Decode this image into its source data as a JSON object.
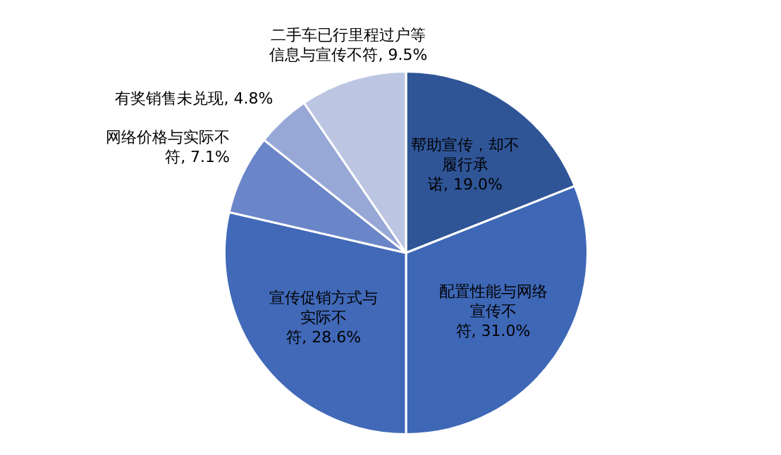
{
  "chart_data": {
    "type": "pie",
    "categories": [
      "帮助宣传，却不履行承诺",
      "配置性能与网络宣传不符",
      "宣传促销方式与实际不符",
      "网络价格与实际不符",
      "有奖销售未兑现",
      "二手车已行里程过户等信息与宣传不符"
    ],
    "values": [
      19.0,
      31.0,
      28.6,
      7.1,
      4.8,
      9.5
    ],
    "value_labels": [
      "19.0%",
      "31.0%",
      "28.6%",
      "7.1%",
      "4.8%",
      "9.5%"
    ],
    "colors": [
      "#2f5597",
      "#3e67b6",
      "#4169b8",
      "#6a86c9",
      "#98a8d6",
      "#bcc6e3"
    ],
    "legend": false
  }
}
